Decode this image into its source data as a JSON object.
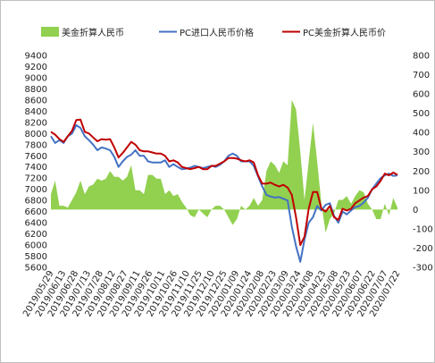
{
  "chart_data": {
    "type": "line",
    "title": "",
    "legend": {
      "placement": "top",
      "entries": [
        {
          "name": "美金折算人民币",
          "kind": "area",
          "color": "#92d050"
        },
        {
          "name": "PC进口人民币价格",
          "kind": "line",
          "color": "#4472c4"
        },
        {
          "name": "PC美金折算人民币价",
          "kind": "line",
          "color": "#c00000"
        }
      ]
    },
    "x_axis": {
      "ticks": [
        "2019/05/29",
        "2019/06/13",
        "2019/06/28",
        "2019/07/13",
        "2019/07/28",
        "2019/08/12",
        "2019/08/27",
        "2019/09/11",
        "2019/09/26",
        "2019/10/11",
        "2019/10/26",
        "2019/11/10",
        "2019/11/25",
        "2019/12/10",
        "2019/12/25",
        "2020/01/09",
        "2020/01/24",
        "2020/02/08",
        "2020/02/23",
        "2020/03/09",
        "2020/03/24",
        "2020/04/08",
        "2020/04/23",
        "2020/05/08",
        "2020/05/23",
        "2020/06/07",
        "2020/06/22",
        "2020/07/07",
        "2020/07/22"
      ]
    },
    "y_left": {
      "min": 5600,
      "max": 9400,
      "step": 200
    },
    "y_right": {
      "min": -300,
      "max": 800,
      "step": 100
    },
    "series": [
      {
        "name": "PC进口人民币价格",
        "axis": "left",
        "color": "#4472c4",
        "values": [
          7950,
          7830,
          7880,
          7830,
          7950,
          8000,
          8150,
          8100,
          7950,
          7880,
          7800,
          7700,
          7750,
          7730,
          7700,
          7580,
          7400,
          7500,
          7580,
          7620,
          7700,
          7600,
          7600,
          7500,
          7480,
          7480,
          7480,
          7520,
          7400,
          7450,
          7400,
          7360,
          7370,
          7390,
          7420,
          7400,
          7380,
          7400,
          7420,
          7400,
          7440,
          7500,
          7600,
          7640,
          7600,
          7500,
          7500,
          7500,
          7420,
          7230,
          7050,
          6900,
          6870,
          6850,
          6860,
          6830,
          6800,
          6330,
          5980,
          5700,
          6100,
          6400,
          6500,
          6700,
          6620,
          6720,
          6750,
          6520,
          6400,
          6600,
          6550,
          6620,
          6680,
          6700,
          6760,
          6850,
          7000,
          7100,
          7200,
          7250,
          7280,
          7240,
          7250
        ]
      },
      {
        "name": "PC美金折算人民币价",
        "axis": "left",
        "color": "#c00000",
        "values": [
          8030,
          7980,
          7900,
          7850,
          7950,
          8050,
          8240,
          8250,
          8030,
          8000,
          7930,
          7860,
          7900,
          7890,
          7900,
          7750,
          7570,
          7650,
          7750,
          7850,
          7800,
          7700,
          7680,
          7680,
          7660,
          7640,
          7640,
          7600,
          7500,
          7520,
          7480,
          7400,
          7380,
          7360,
          7380,
          7400,
          7360,
          7360,
          7420,
          7420,
          7460,
          7500,
          7560,
          7560,
          7550,
          7520,
          7500,
          7520,
          7480,
          7250,
          7100,
          7100,
          7120,
          7080,
          7050,
          7080,
          7030,
          6900,
          6500,
          6000,
          6150,
          6650,
          6950,
          6950,
          6650,
          6600,
          6700,
          6500,
          6450,
          6650,
          6620,
          6650,
          6750,
          6800,
          6850,
          6880,
          7000,
          7050,
          7150,
          7280,
          7250,
          7300,
          7260
        ]
      },
      {
        "name": "美金折算人民币",
        "axis": "right",
        "color": "#92d050",
        "values": [
          80,
          150,
          20,
          20,
          10,
          50,
          90,
          150,
          80,
          120,
          130,
          160,
          150,
          160,
          200,
          170,
          170,
          150,
          170,
          230,
          100,
          100,
          80,
          180,
          180,
          160,
          160,
          80,
          100,
          70,
          80,
          40,
          10,
          -30,
          -40,
          0,
          -20,
          -40,
          0,
          20,
          20,
          0,
          -40,
          -80,
          -50,
          20,
          0,
          20,
          60,
          20,
          50,
          200,
          250,
          230,
          190,
          250,
          230,
          570,
          520,
          300,
          50,
          250,
          450,
          250,
          30,
          -120,
          -50,
          -20,
          50,
          50,
          70,
          30,
          70,
          100,
          90,
          30,
          0,
          -50,
          -50,
          30,
          -30,
          60,
          10
        ]
      }
    ]
  }
}
